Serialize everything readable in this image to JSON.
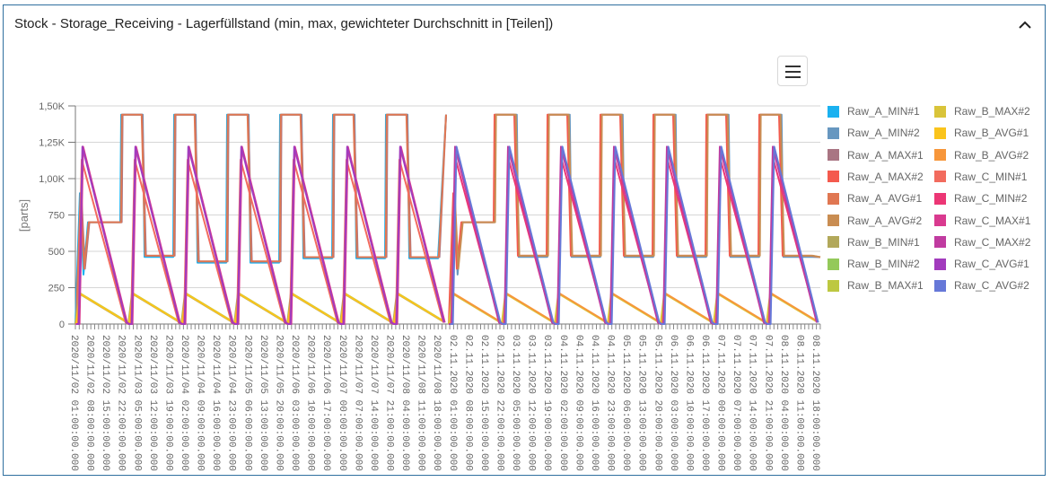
{
  "panel": {
    "title": "Stock - Storage_Receiving - Lagerfüllstand (min, max, gewichteter Durchschnitt in [Teilen])",
    "collapse_icon": "chevron-up-icon",
    "menu_icon": "hamburger-menu-icon"
  },
  "chart_data": {
    "type": "line",
    "title": "Stock - Storage_Receiving - Lagerfüllstand (min, max, gewichteter Durchschnitt in [Teilen])",
    "xlabel": "",
    "ylabel": "[parts]",
    "ylim": [
      0,
      1500
    ],
    "y_ticks": [
      "0",
      "250",
      "500",
      "750",
      "1,00K",
      "1,25K",
      "1,50K"
    ],
    "grid": true,
    "legend_position": "right",
    "x_tick_labels": [
      "2020/11/02 01:00:00.000",
      "2020/11/02 08:00:00.000",
      "2020/11/02 15:00:00.000",
      "2020/11/02 22:00:00.000",
      "2020/11/03 05:00:00.000",
      "2020/11/03 12:00:00.000",
      "2020/11/03 19:00:00.000",
      "2020/11/04 02:00:00.000",
      "2020/11/04 09:00:00.000",
      "2020/11/04 16:00:00.000",
      "2020/11/04 23:00:00.000",
      "2020/11/05 06:00:00.000",
      "2020/11/05 13:00:00.000",
      "2020/11/05 20:00:00.000",
      "2020/11/06 03:00:00.000",
      "2020/11/06 10:00:00.000",
      "2020/11/06 17:00:00.000",
      "2020/11/07 00:00:00.000",
      "2020/11/07 07:00:00.000",
      "2020/11/07 14:00:00.000",
      "2020/11/07 21:00:00.000",
      "2020/11/08 04:00:00.000",
      "2020/11/08 11:00:00.000",
      "2020/11/08 18:00:00.000",
      "02.11.2020 01:00:00.000",
      "02.11.2020 08:00:00.000",
      "02.11.2020 15:00:00.000",
      "02.11.2020 22:00:00.000",
      "03.11.2020 05:00:00.000",
      "03.11.2020 12:00:00.000",
      "03.11.2020 19:00:00.000",
      "04.11.2020 02:00:00.000",
      "04.11.2020 09:00:00.000",
      "04.11.2020 16:00:00.000",
      "04.11.2020 23:00:00.000",
      "05.11.2020 06:00:00.000",
      "05.11.2020 13:00:00.000",
      "05.11.2020 20:00:00.000",
      "06.11.2020 03:00:00.000",
      "06.11.2020 10:00:00.000",
      "06.11.2020 17:00:00.000",
      "07.11.2020 00:00:00.000",
      "07.11.2020 07:00:00.000",
      "07.11.2020 14:00:00.000",
      "07.11.2020 21:00:00.000",
      "08.11.2020 04:00:00.000",
      "08.11.2020 11:00:00.000",
      "08.11.2020 18:00:00.000"
    ],
    "series": [
      {
        "name": "Raw_A_MIN#1",
        "color": "#1ab1f0",
        "group": "A",
        "half": 1
      },
      {
        "name": "Raw_A_MIN#2",
        "color": "#6797c0",
        "group": "A",
        "half": 2
      },
      {
        "name": "Raw_A_MAX#1",
        "color": "#a97583",
        "group": "A",
        "half": 1
      },
      {
        "name": "Raw_A_MAX#2",
        "color": "#f45a4e",
        "group": "A",
        "half": 2
      },
      {
        "name": "Raw_A_AVG#1",
        "color": "#e07752",
        "group": "A",
        "half": 1
      },
      {
        "name": "Raw_A_AVG#2",
        "color": "#c98d52",
        "group": "A",
        "half": 2
      },
      {
        "name": "Raw_B_MIN#1",
        "color": "#b2a85a",
        "group": "B",
        "half": 1
      },
      {
        "name": "Raw_B_MIN#2",
        "color": "#94c95a",
        "group": "B",
        "half": 2
      },
      {
        "name": "Raw_B_MAX#1",
        "color": "#bdc841",
        "group": "B",
        "half": 1
      },
      {
        "name": "Raw_B_MAX#2",
        "color": "#d9c43a",
        "group": "B",
        "half": 2
      },
      {
        "name": "Raw_B_AVG#1",
        "color": "#fac41c",
        "group": "B",
        "half": 1
      },
      {
        "name": "Raw_B_AVG#2",
        "color": "#f7963a",
        "group": "B",
        "half": 2
      },
      {
        "name": "Raw_C_MIN#1",
        "color": "#f26b5e",
        "group": "C",
        "half": 1
      },
      {
        "name": "Raw_C_MIN#2",
        "color": "#ec3675",
        "group": "C",
        "half": 2
      },
      {
        "name": "Raw_C_MAX#1",
        "color": "#d93a8f",
        "group": "C",
        "half": 1
      },
      {
        "name": "Raw_C_MAX#2",
        "color": "#c03ba0",
        "group": "C",
        "half": 2
      },
      {
        "name": "Raw_C_AVG#1",
        "color": "#a23bbd",
        "group": "C",
        "half": 1
      },
      {
        "name": "Raw_C_AVG#2",
        "color": "#6678d8",
        "group": "C",
        "half": 2
      }
    ],
    "approx_levels": {
      "A_max_plateau": 1440,
      "A_low_plateaus": [
        700,
        470,
        430,
        460
      ],
      "C_peak": 1250,
      "B_peak": 240,
      "min": 0
    }
  }
}
